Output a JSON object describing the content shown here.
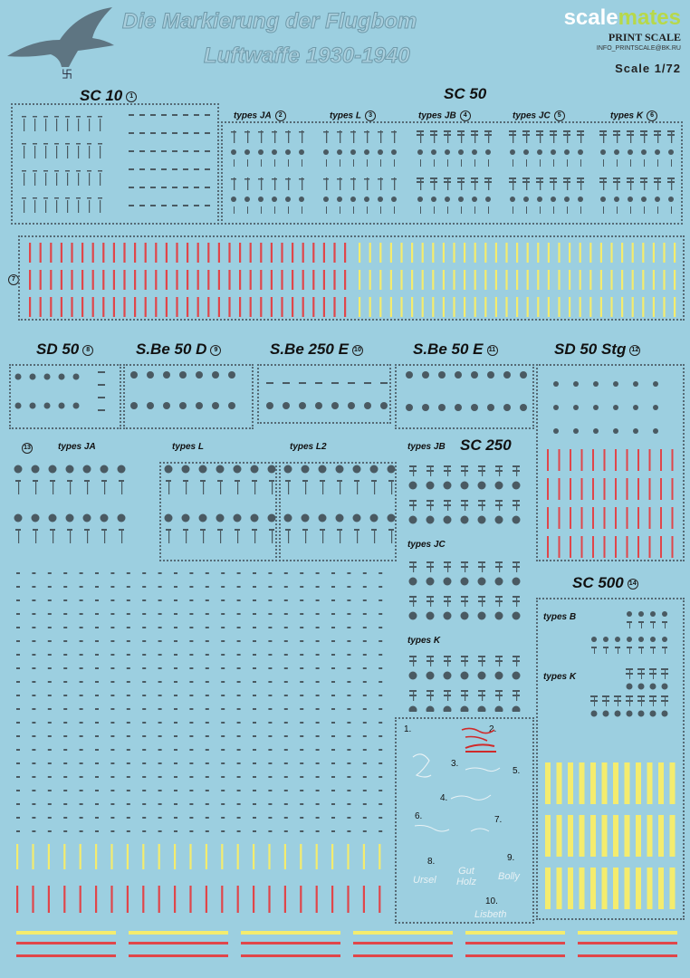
{
  "header": {
    "title_line1": "Die Markierung der Flugbom",
    "title_line2": "Luftwaffe 1930-1940",
    "brand_scale": "scale",
    "brand_mates": "mates",
    "publisher": "PRINT SCALE",
    "email": "INFO_PRINTSCALE@BK.RU",
    "scale": "Scale 1/72"
  },
  "sections": {
    "sc10": {
      "label": "SC 10",
      "num": "1"
    },
    "sc50": {
      "label": "SC 50"
    },
    "sc50_types": [
      {
        "label": "types JA",
        "num": "2"
      },
      {
        "label": "types L",
        "num": "3"
      },
      {
        "label": "types JB",
        "num": "4"
      },
      {
        "label": "types JC",
        "num": "5"
      },
      {
        "label": "types K",
        "num": "6"
      }
    ],
    "stripes": {
      "num": "7"
    },
    "row2": [
      {
        "label": "SD 50",
        "num": "8"
      },
      {
        "label": "S.Be 50 D",
        "num": "9"
      },
      {
        "label": "S.Be 250 E",
        "num": "10"
      },
      {
        "label": "S.Be 50 E",
        "num": "11"
      },
      {
        "label": "SD 50 Stg",
        "num": "12"
      }
    ],
    "sc250": {
      "label": "SC 250",
      "num": "13"
    },
    "sc250_types": [
      "types JA",
      "types L",
      "types L2",
      "types JB",
      "types JC",
      "types K"
    ],
    "sc500": {
      "label": "SC 500",
      "num": "14",
      "types": [
        "types B",
        "types K"
      ]
    }
  },
  "inscriptions": {
    "numbers": [
      "1.",
      "2.",
      "3.",
      "4.",
      "5.",
      "6.",
      "7.",
      "8.",
      "9.",
      "10."
    ],
    "texts": [
      "Ursel",
      "Gut Holz",
      "Bolly",
      "Lisbeth"
    ]
  },
  "colors": {
    "background": "#9ccfe0",
    "red": "#e0464a",
    "yellow": "#f4ec6e",
    "mark": "#4a5a62"
  }
}
